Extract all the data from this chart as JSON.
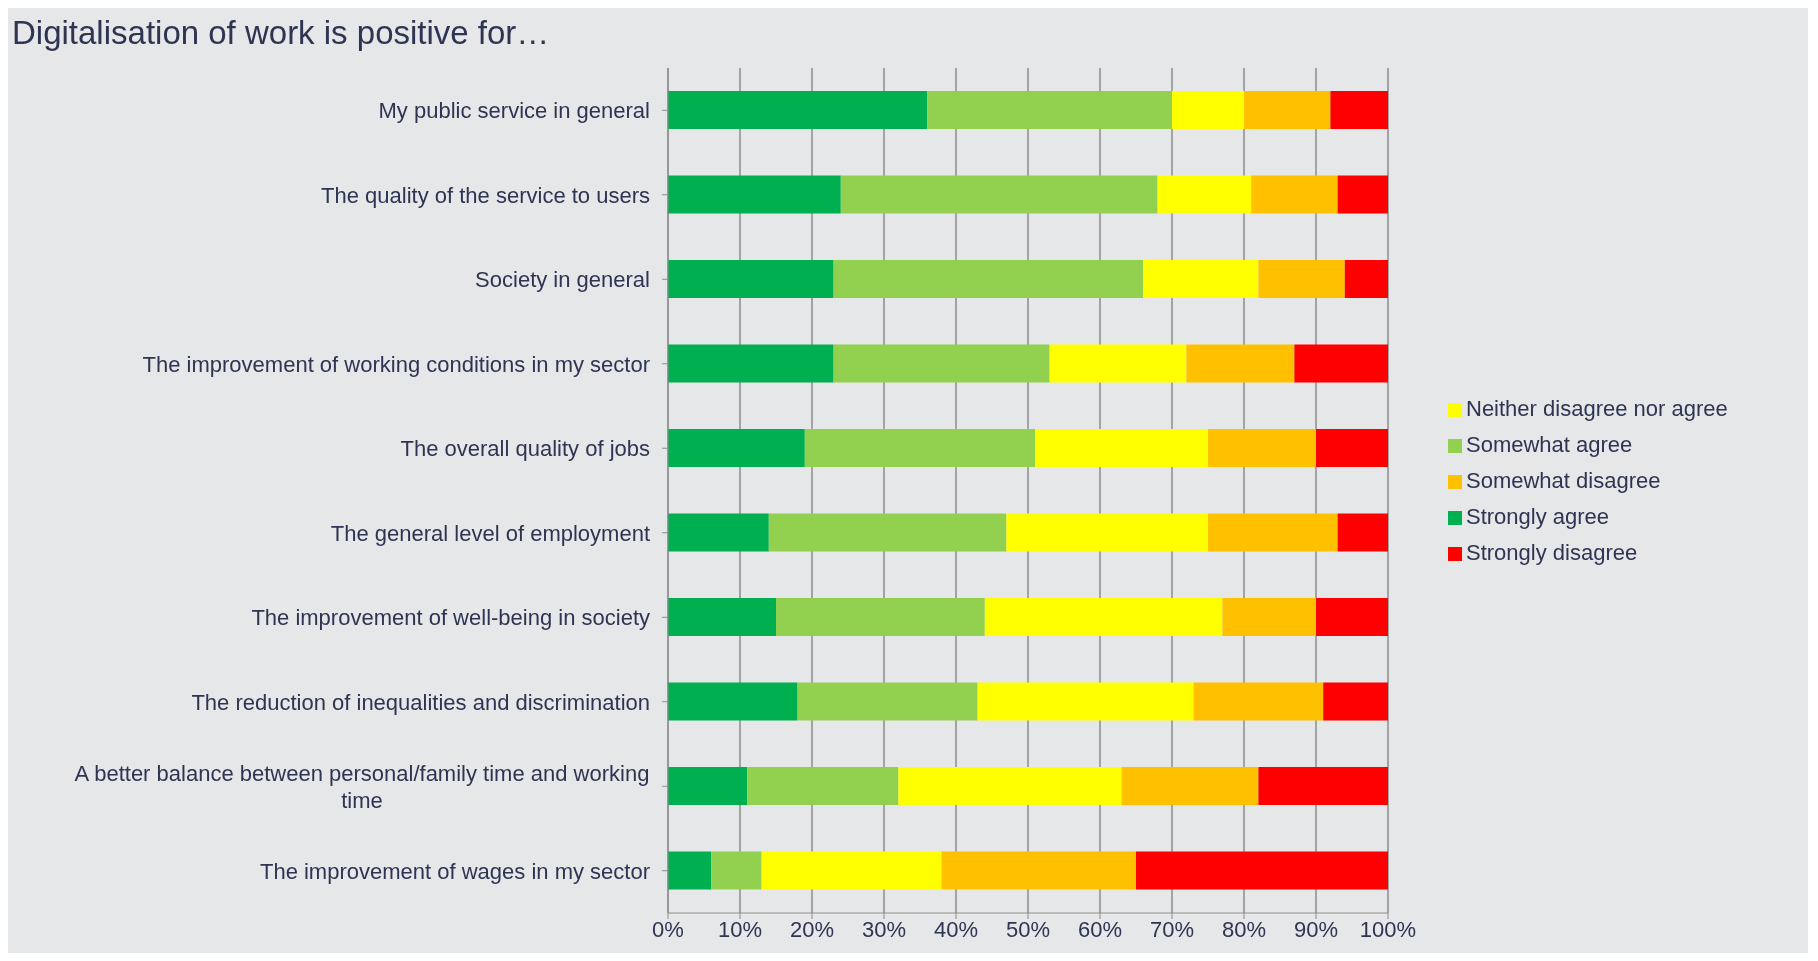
{
  "chart_data": {
    "type": "bar",
    "orientation": "horizontal",
    "stacked": true,
    "title": "Digitalisation of work is positive for…",
    "categories": [
      "My public service in general",
      "The quality of the service to users",
      "Society in general",
      "The improvement of working conditions in my sector",
      "The overall quality of jobs",
      "The general level of employment",
      "The improvement of well-being in society",
      "The reduction of inequalities and discrimination",
      "A better balance between personal/family time and working time",
      "The improvement of wages in my sector"
    ],
    "series": [
      {
        "name": "Strongly agree",
        "color": "#00b050",
        "values": [
          36,
          24,
          23,
          23,
          19,
          14,
          15,
          18,
          11,
          6
        ]
      },
      {
        "name": "Somewhat agree",
        "color": "#92d050",
        "values": [
          34,
          44,
          43,
          30,
          32,
          33,
          29,
          25,
          21,
          7
        ]
      },
      {
        "name": "Neither disagree nor agree",
        "color": "#ffff00",
        "values": [
          10,
          13,
          16,
          19,
          24,
          28,
          33,
          30,
          31,
          25
        ]
      },
      {
        "name": "Somewhat disagree",
        "color": "#ffc000",
        "values": [
          12,
          12,
          12,
          15,
          15,
          18,
          13,
          18,
          19,
          27
        ]
      },
      {
        "name": "Strongly disagree",
        "color": "#ff0000",
        "values": [
          8,
          7,
          6,
          13,
          10,
          7,
          10,
          9,
          18,
          35
        ]
      }
    ],
    "xlim": [
      0,
      100
    ],
    "xticks": [
      {
        "value": 0,
        "label": "0%"
      },
      {
        "value": 10,
        "label": "10%"
      },
      {
        "value": 20,
        "label": "20%"
      },
      {
        "value": 30,
        "label": "30%"
      },
      {
        "value": 40,
        "label": "40%"
      },
      {
        "value": 50,
        "label": "50%"
      },
      {
        "value": 60,
        "label": "60%"
      },
      {
        "value": 70,
        "label": "70%"
      },
      {
        "value": 80,
        "label": "80%"
      },
      {
        "value": 90,
        "label": "90%"
      },
      {
        "value": 100,
        "label": "100%"
      }
    ],
    "grid": "x",
    "legend": "right"
  }
}
